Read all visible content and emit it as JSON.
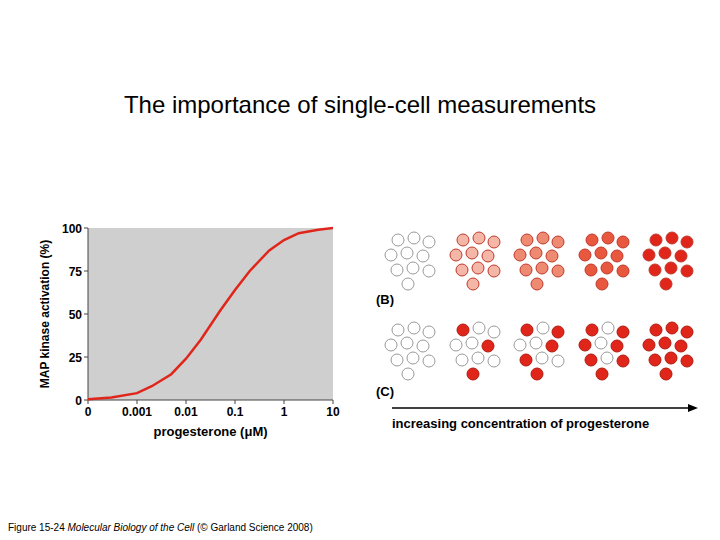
{
  "chart_data": {
    "type": "line",
    "x_label": "progesterone (μM)",
    "y_label": "MAP kinase activation (%)",
    "x": [
      0.0001,
      0.0003,
      0.001,
      0.002,
      0.005,
      0.01,
      0.02,
      0.05,
      0.1,
      0.2,
      0.5,
      1,
      2,
      5,
      10
    ],
    "values": [
      0.5,
      1.5,
      4,
      8,
      15,
      24,
      35,
      52,
      64,
      75,
      87,
      93,
      97,
      99,
      100
    ],
    "color": "#e0261a",
    "log": "x",
    "grid": false,
    "xlim": [
      0.0001,
      10
    ],
    "xticks": [
      {
        "value": 0.0001,
        "label": "0"
      },
      0.001,
      0.01,
      0.1,
      1,
      10
    ],
    "ylim": [
      0,
      100
    ],
    "yticks": [
      0,
      25,
      50,
      75,
      100
    ]
  },
  "slide": {
    "title": "The importance of single-cell measurements",
    "caption": {
      "figure": "Figure 15-24",
      "book": "Molecular Biology of the Cell",
      "credit": "(© Garland Science 2008)"
    }
  },
  "panels": {
    "b": {
      "label": "(B)",
      "cells": 10,
      "colors": [
        "#ffffff",
        "#f4b6a6",
        "#ee8a72",
        "#e8583f",
        "#e0261a"
      ]
    },
    "c": {
      "label": "(C)",
      "cells": 10,
      "active": [
        0,
        3,
        5,
        7,
        10
      ],
      "color": "#e0261a"
    },
    "arrow_label": "increasing concentration of progesterone"
  }
}
